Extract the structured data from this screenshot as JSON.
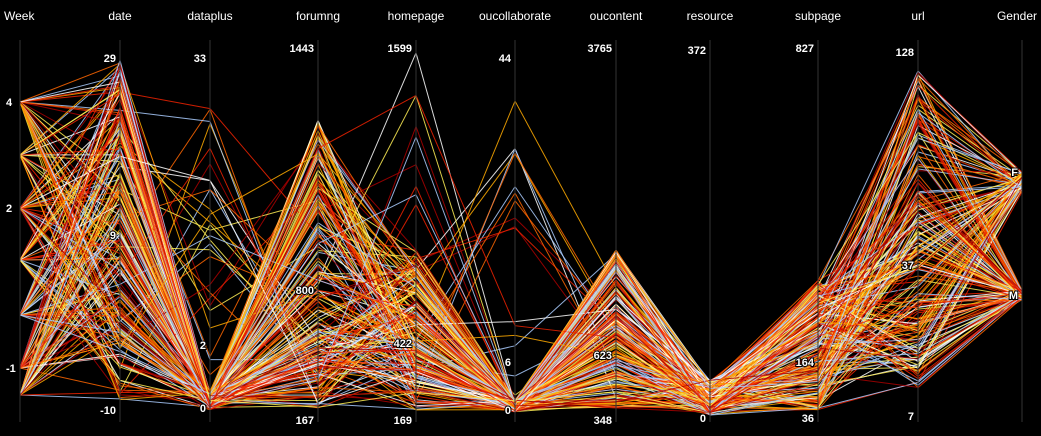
{
  "chart_data": {
    "type": "parallel-coordinates",
    "background": "#000000",
    "axes": [
      {
        "name": "Week",
        "ticks": [
          "4",
          "2",
          "-1"
        ],
        "ticks_mid": [
          "4",
          "2",
          "-1"
        ]
      },
      {
        "name": "date",
        "ticks": [
          "29",
          "9",
          "-10"
        ]
      },
      {
        "name": "dataplus",
        "ticks": [
          "33",
          "2",
          "0"
        ]
      },
      {
        "name": "forumng",
        "ticks": [
          "1443",
          "800",
          "167"
        ]
      },
      {
        "name": "homepage",
        "ticks": [
          "1599",
          "422",
          "169"
        ]
      },
      {
        "name": "oucollaborate",
        "ticks": [
          "44",
          "6",
          "0"
        ]
      },
      {
        "name": "oucontent",
        "ticks": [
          "3765",
          "623",
          "348"
        ]
      },
      {
        "name": "resource",
        "ticks": [
          "372",
          "0"
        ]
      },
      {
        "name": "subpage",
        "ticks": [
          "827",
          "164",
          "36"
        ]
      },
      {
        "name": "url",
        "ticks": [
          "128",
          "37",
          "7"
        ]
      },
      {
        "name": "Gender",
        "ticks": [
          "F",
          "M"
        ]
      }
    ],
    "line_colors": [
      "#aaccff",
      "#ffffff",
      "#ffee55",
      "#ffaa00",
      "#ff6600",
      "#ee2200",
      "#aa0000"
    ],
    "line_count": 220
  }
}
